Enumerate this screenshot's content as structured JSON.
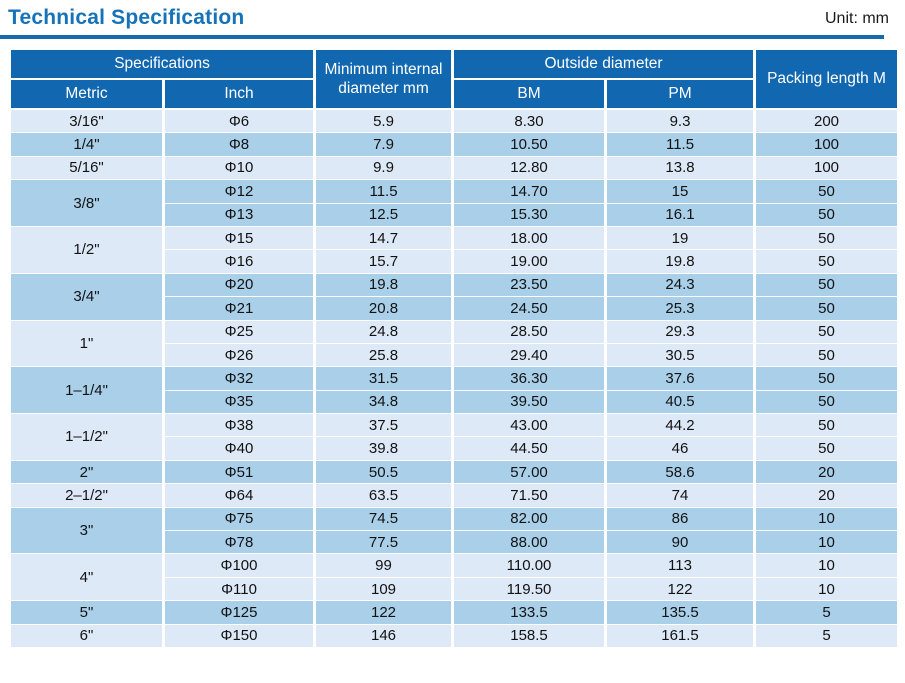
{
  "page": {
    "title": "Technical Specification",
    "unit_label": "Unit: mm"
  },
  "colors": {
    "title_blue": "#1673b8",
    "header_blue": "#1268b0",
    "rule_blue": "#146caf",
    "row_light": "#dde9f6",
    "row_dark": "#a9cfe9",
    "header_text": "#ffffff",
    "body_text": "#121212"
  },
  "table": {
    "headers": {
      "specifications": "Specifications",
      "metric": "Metric",
      "inch": "Inch",
      "min_internal": "Minimum internal diameter mm",
      "outside_diameter": "Outside diameter",
      "bm": "BM",
      "pm": "PM",
      "packing": "Packing length M"
    },
    "groups": [
      {
        "metric": "3/16\"",
        "rows": [
          {
            "inch": "Φ6",
            "min": "5.9",
            "bm": "8.30",
            "pm": "9.3",
            "packing": "200"
          }
        ]
      },
      {
        "metric": "1/4\"",
        "rows": [
          {
            "inch": "Φ8",
            "min": "7.9",
            "bm": "10.50",
            "pm": "11.5",
            "packing": "100"
          }
        ]
      },
      {
        "metric": "5/16\"",
        "rows": [
          {
            "inch": "Φ10",
            "min": "9.9",
            "bm": "12.80",
            "pm": "13.8",
            "packing": "100"
          }
        ]
      },
      {
        "metric": "3/8\"",
        "rows": [
          {
            "inch": "Φ12",
            "min": "11.5",
            "bm": "14.70",
            "pm": "15",
            "packing": "50"
          },
          {
            "inch": "Φ13",
            "min": "12.5",
            "bm": "15.30",
            "pm": "16.1",
            "packing": "50"
          }
        ]
      },
      {
        "metric": "1/2\"",
        "rows": [
          {
            "inch": "Φ15",
            "min": "14.7",
            "bm": "18.00",
            "pm": "19",
            "packing": "50"
          },
          {
            "inch": "Φ16",
            "min": "15.7",
            "bm": "19.00",
            "pm": "19.8",
            "packing": "50"
          }
        ]
      },
      {
        "metric": "3/4\"",
        "rows": [
          {
            "inch": "Φ20",
            "min": "19.8",
            "bm": "23.50",
            "pm": "24.3",
            "packing": "50"
          },
          {
            "inch": "Φ21",
            "min": "20.8",
            "bm": "24.50",
            "pm": "25.3",
            "packing": "50"
          }
        ]
      },
      {
        "metric": "1\"",
        "rows": [
          {
            "inch": "Φ25",
            "min": "24.8",
            "bm": "28.50",
            "pm": "29.3",
            "packing": "50"
          },
          {
            "inch": "Φ26",
            "min": "25.8",
            "bm": "29.40",
            "pm": "30.5",
            "packing": "50"
          }
        ]
      },
      {
        "metric": "1–1/4\"",
        "rows": [
          {
            "inch": "Φ32",
            "min": "31.5",
            "bm": "36.30",
            "pm": "37.6",
            "packing": "50"
          },
          {
            "inch": "Φ35",
            "min": "34.8",
            "bm": "39.50",
            "pm": "40.5",
            "packing": "50"
          }
        ]
      },
      {
        "metric": "1–1/2\"",
        "rows": [
          {
            "inch": "Φ38",
            "min": "37.5",
            "bm": "43.00",
            "pm": "44.2",
            "packing": "50"
          },
          {
            "inch": "Φ40",
            "min": "39.8",
            "bm": "44.50",
            "pm": "46",
            "packing": "50"
          }
        ]
      },
      {
        "metric": "2\"",
        "rows": [
          {
            "inch": "Φ51",
            "min": "50.5",
            "bm": "57.00",
            "pm": "58.6",
            "packing": "20"
          }
        ]
      },
      {
        "metric": "2–1/2\"",
        "rows": [
          {
            "inch": "Φ64",
            "min": "63.5",
            "bm": "71.50",
            "pm": "74",
            "packing": "20"
          }
        ]
      },
      {
        "metric": "3\"",
        "rows": [
          {
            "inch": "Φ75",
            "min": "74.5",
            "bm": "82.00",
            "pm": "86",
            "packing": "10"
          },
          {
            "inch": "Φ78",
            "min": "77.5",
            "bm": "88.00",
            "pm": "90",
            "packing": "10"
          }
        ]
      },
      {
        "metric": "4\"",
        "rows": [
          {
            "inch": "Φ100",
            "min": "99",
            "bm": "110.00",
            "pm": "113",
            "packing": "10"
          },
          {
            "inch": "Φ110",
            "min": "109",
            "bm": "119.50",
            "pm": "122",
            "packing": "10"
          }
        ]
      },
      {
        "metric": "5\"",
        "rows": [
          {
            "inch": "Φ125",
            "min": "122",
            "bm": "133.5",
            "pm": "135.5",
            "packing": "5"
          }
        ]
      },
      {
        "metric": "6\"",
        "rows": [
          {
            "inch": "Φ150",
            "min": "146",
            "bm": "158.5",
            "pm": "161.5",
            "packing": "5"
          }
        ]
      }
    ]
  }
}
